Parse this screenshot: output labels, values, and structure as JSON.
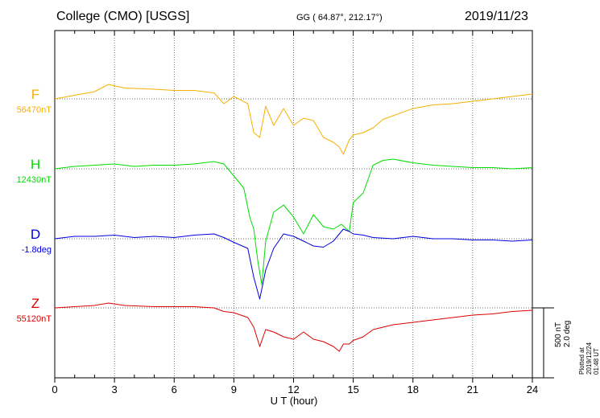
{
  "header": {
    "station": "College (CMO)  [USGS]",
    "coords": "GG ( 64.87°, 212.17°)",
    "date": "2019/11/23"
  },
  "traces": [
    {
      "key": "F",
      "letter": "F",
      "baseline": "56470nT",
      "color": "#f5b000"
    },
    {
      "key": "H",
      "letter": "H",
      "baseline": "12430nT",
      "color": "#00dd00"
    },
    {
      "key": "D",
      "letter": "D",
      "baseline": "-1.8deg",
      "color": "#0000dd"
    },
    {
      "key": "Z",
      "letter": "Z",
      "baseline": "55120nT",
      "color": "#dd0000"
    }
  ],
  "scale": {
    "line1": "500 nT",
    "line2": "2.0 deg"
  },
  "plotted": "Plotted at 2019/12/24 01:48 UT",
  "chart_data": {
    "type": "line",
    "xlabel": "U T (hour)",
    "xlim": [
      0,
      24
    ],
    "xticks": [
      "0",
      "3",
      "6",
      "9",
      "12",
      "15",
      "18",
      "21",
      "24"
    ],
    "series": [
      {
        "name": "F",
        "points": [
          [
            0,
            0
          ],
          [
            1,
            15
          ],
          [
            2,
            30
          ],
          [
            2.7,
            60
          ],
          [
            3.5,
            45
          ],
          [
            5,
            40
          ],
          [
            6,
            35
          ],
          [
            7,
            35
          ],
          [
            8,
            25
          ],
          [
            8.5,
            -20
          ],
          [
            9,
            10
          ],
          [
            9.7,
            -20
          ],
          [
            10,
            -140
          ],
          [
            10.3,
            -160
          ],
          [
            10.6,
            -30
          ],
          [
            11,
            -110
          ],
          [
            11.5,
            -40
          ],
          [
            12,
            -110
          ],
          [
            12.5,
            -80
          ],
          [
            13,
            -90
          ],
          [
            13.5,
            -160
          ],
          [
            14,
            -180
          ],
          [
            14.3,
            -200
          ],
          [
            14.5,
            -230
          ],
          [
            14.8,
            -170
          ],
          [
            15,
            -150
          ],
          [
            15.5,
            -140
          ],
          [
            16,
            -120
          ],
          [
            16.5,
            -85
          ],
          [
            17,
            -70
          ],
          [
            18,
            -40
          ],
          [
            19,
            -25
          ],
          [
            20,
            -20
          ],
          [
            21,
            -10
          ],
          [
            22,
            0
          ],
          [
            23,
            10
          ],
          [
            24,
            20
          ]
        ]
      },
      {
        "name": "H",
        "points": [
          [
            0,
            0
          ],
          [
            1,
            10
          ],
          [
            2,
            15
          ],
          [
            3,
            20
          ],
          [
            4,
            10
          ],
          [
            5,
            15
          ],
          [
            6,
            15
          ],
          [
            7,
            20
          ],
          [
            8,
            30
          ],
          [
            8.5,
            20
          ],
          [
            9,
            -30
          ],
          [
            9.5,
            -80
          ],
          [
            9.8,
            -200
          ],
          [
            10,
            -250
          ],
          [
            10.2,
            -380
          ],
          [
            10.4,
            -480
          ],
          [
            10.6,
            -300
          ],
          [
            10.8,
            -240
          ],
          [
            11,
            -180
          ],
          [
            11.5,
            -150
          ],
          [
            12,
            -200
          ],
          [
            12.5,
            -270
          ],
          [
            13,
            -190
          ],
          [
            13.5,
            -240
          ],
          [
            14,
            -250
          ],
          [
            14.4,
            -230
          ],
          [
            14.8,
            -260
          ],
          [
            15,
            -140
          ],
          [
            15.5,
            -100
          ],
          [
            16,
            15
          ],
          [
            16.5,
            35
          ],
          [
            17,
            40
          ],
          [
            18,
            25
          ],
          [
            19,
            15
          ],
          [
            20,
            10
          ],
          [
            21,
            5
          ],
          [
            22,
            5
          ],
          [
            23,
            0
          ],
          [
            24,
            5
          ]
        ]
      },
      {
        "name": "D",
        "points": [
          [
            0,
            0
          ],
          [
            1,
            10
          ],
          [
            2,
            10
          ],
          [
            3,
            15
          ],
          [
            4,
            5
          ],
          [
            5,
            10
          ],
          [
            6,
            5
          ],
          [
            7,
            15
          ],
          [
            8,
            20
          ],
          [
            8.5,
            5
          ],
          [
            9,
            -15
          ],
          [
            9.7,
            -40
          ],
          [
            10,
            -160
          ],
          [
            10.3,
            -250
          ],
          [
            10.6,
            -130
          ],
          [
            11,
            -40
          ],
          [
            11.5,
            20
          ],
          [
            12,
            10
          ],
          [
            12.5,
            -10
          ],
          [
            13,
            -30
          ],
          [
            13.5,
            -35
          ],
          [
            14,
            -10
          ],
          [
            14.5,
            40
          ],
          [
            14.8,
            30
          ],
          [
            15,
            20
          ],
          [
            15.5,
            15
          ],
          [
            16,
            5
          ],
          [
            17,
            0
          ],
          [
            18,
            10
          ],
          [
            19,
            0
          ],
          [
            20,
            0
          ],
          [
            21,
            -5
          ],
          [
            22,
            -5
          ],
          [
            23,
            -10
          ],
          [
            24,
            -5
          ]
        ]
      },
      {
        "name": "Z",
        "points": [
          [
            0,
            0
          ],
          [
            1,
            5
          ],
          [
            2,
            10
          ],
          [
            2.7,
            20
          ],
          [
            3.5,
            10
          ],
          [
            5,
            5
          ],
          [
            6,
            5
          ],
          [
            7,
            5
          ],
          [
            8,
            0
          ],
          [
            8.5,
            -15
          ],
          [
            9,
            -20
          ],
          [
            9.7,
            -40
          ],
          [
            10,
            -80
          ],
          [
            10.3,
            -160
          ],
          [
            10.6,
            -90
          ],
          [
            11,
            -100
          ],
          [
            11.5,
            -120
          ],
          [
            12,
            -130
          ],
          [
            12.5,
            -100
          ],
          [
            13,
            -130
          ],
          [
            13.5,
            -140
          ],
          [
            14,
            -160
          ],
          [
            14.3,
            -180
          ],
          [
            14.5,
            -150
          ],
          [
            14.8,
            -150
          ],
          [
            15,
            -135
          ],
          [
            15.5,
            -120
          ],
          [
            16,
            -90
          ],
          [
            17,
            -70
          ],
          [
            18,
            -60
          ],
          [
            19,
            -50
          ],
          [
            20,
            -40
          ],
          [
            21,
            -30
          ],
          [
            22,
            -25
          ],
          [
            23,
            -15
          ],
          [
            24,
            -10
          ]
        ]
      }
    ]
  }
}
